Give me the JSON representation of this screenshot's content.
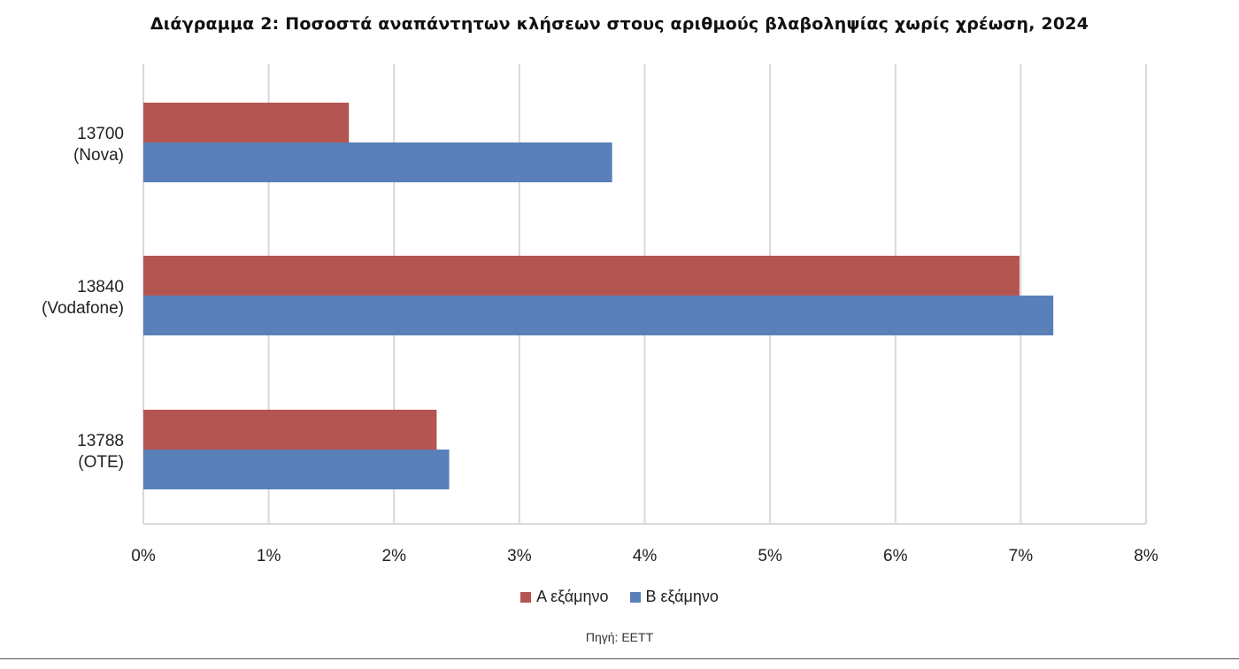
{
  "title": "Διάγραμμα 2: Ποσοστά αναπάντητων κλήσεων στους αριθμούς βλαβοληψίας χωρίς χρέωση, 2024",
  "source": "Πηγή: ΕΕΤΤ",
  "colors": {
    "series_a": "#b55552",
    "series_b": "#5a80b9",
    "grid": "#d9d9d9"
  },
  "chart_data": {
    "type": "bar",
    "orientation": "horizontal",
    "title": "Διάγραμμα 2: Ποσοστά αναπάντητων κλήσεων στους αριθμούς βλαβοληψίας χωρίς χρέωση, 2024",
    "categories": [
      {
        "line1": "13700",
        "line2": "(Nova)"
      },
      {
        "line1": "13840",
        "line2": "(Vodafone)"
      },
      {
        "line1": "13788",
        "line2": "(OTE)"
      }
    ],
    "series": [
      {
        "name": "Α εξάμηνο",
        "values": [
          1.64,
          6.99,
          2.34
        ]
      },
      {
        "name": "Β εξάμηνο",
        "values": [
          3.74,
          7.26,
          2.44
        ]
      }
    ],
    "xlim": [
      0,
      8
    ],
    "xticks": [
      "0%",
      "1%",
      "2%",
      "3%",
      "4%",
      "5%",
      "6%",
      "7%",
      "8%"
    ],
    "grid": true,
    "legend_position": "bottom"
  }
}
